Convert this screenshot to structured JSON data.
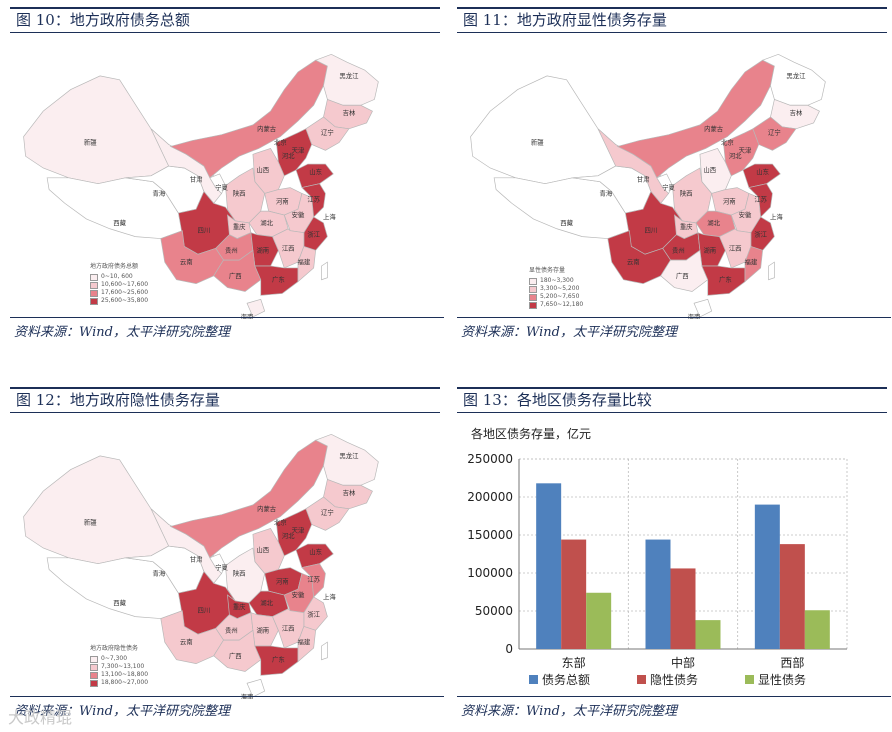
{
  "panels": {
    "p10": {
      "title": "图 10：地方政府债务总额",
      "source": "资料来源：Wind，太平洋研究院整理",
      "legend": {
        "title": "地方政府债务总额",
        "items": [
          {
            "label": "0~10, 600",
            "color": "#fbeef0"
          },
          {
            "label": "10,600~17,600",
            "color": "#f5c9ce"
          },
          {
            "label": "17,600~25,600",
            "color": "#e8838c"
          },
          {
            "label": "25,600~35,800",
            "color": "#c23a46"
          }
        ]
      }
    },
    "p11": {
      "title": "图 11：地方政府显性债务存量",
      "source": "资料来源：Wind，太平洋研究院整理",
      "legend": {
        "title": "显性债务存量",
        "items": [
          {
            "label": "180~3,300",
            "color": "#fbeef0"
          },
          {
            "label": "3,300~5,200",
            "color": "#f5c9ce"
          },
          {
            "label": "5,200~7,650",
            "color": "#e8838c"
          },
          {
            "label": "7,650~12,180",
            "color": "#c23a46"
          }
        ]
      }
    },
    "p12": {
      "title": "图 12：地方政府隐性债务存量",
      "source": "资料来源：Wind，太平洋研究院整理",
      "legend": {
        "title": "地方政府隐性债务",
        "items": [
          {
            "label": "0~7,300",
            "color": "#fbeef0"
          },
          {
            "label": "7,300~13,100",
            "color": "#f5c9ce"
          },
          {
            "label": "13,100~18,800",
            "color": "#e8838c"
          },
          {
            "label": "18,800~27,000",
            "color": "#c23a46"
          }
        ]
      }
    },
    "p13": {
      "title": "图 13：各地区债务存量比较",
      "source": "资料来源：Wind，太平洋研究院整理"
    }
  },
  "map_provinces": {
    "xinjiang": "新疆",
    "xizang": "西藏",
    "qinghai": "青海",
    "gansu": "甘肃",
    "ningxia": "宁夏",
    "neimenggu": "内蒙古",
    "heilongjiang": "黑龙江",
    "jilin": "吉林",
    "liaoning": "辽宁",
    "hebei": "河北",
    "shanxi": "山西",
    "shaanxi": "陕西",
    "shandong": "山东",
    "henan": "河南",
    "sichuan": "四川",
    "chongqing": "重庆",
    "hubei": "湖北",
    "anhui": "安徽",
    "jiangsu": "江苏",
    "zhejiang": "浙江",
    "guizhou": "贵州",
    "hunan": "湖南",
    "jiangxi": "江西",
    "yunnan": "云南",
    "guangxi": "广西",
    "guangdong": "广东",
    "fujian": "福建",
    "hainan": "海南",
    "beijing": "北京",
    "tianjin": "天津",
    "shanghai": "上海"
  },
  "map_colors": {
    "p10": {
      "xinjiang": "#fbeef0",
      "xizang": "#ffffff",
      "qinghai": "#ffffff",
      "gansu": "#fbeef0",
      "ningxia": "#ffffff",
      "neimenggu": "#e8838c",
      "heilongjiang": "#fbeef0",
      "jilin": "#f5c9ce",
      "liaoning": "#f5c9ce",
      "hebei": "#c23a46",
      "shanxi": "#f5c9ce",
      "shaanxi": "#f5c9ce",
      "shandong": "#c23a46",
      "henan": "#f5c9ce",
      "sichuan": "#c23a46",
      "chongqing": "#f5c9ce",
      "hubei": "#f5c9ce",
      "anhui": "#f5c9ce",
      "jiangsu": "#c23a46",
      "zhejiang": "#c23a46",
      "guizhou": "#e8838c",
      "hunan": "#c23a46",
      "jiangxi": "#f5c9ce",
      "yunnan": "#e8838c",
      "guangxi": "#e8838c",
      "guangdong": "#c23a46",
      "fujian": "#f5c9ce",
      "hainan": "#fbeef0"
    },
    "p11": {
      "xinjiang": "#ffffff",
      "xizang": "#ffffff",
      "qinghai": "#ffffff",
      "gansu": "#f5c9ce",
      "ningxia": "#ffffff",
      "neimenggu": "#e8838c",
      "heilongjiang": "#ffffff",
      "jilin": "#fbeef0",
      "liaoning": "#e8838c",
      "hebei": "#e8838c",
      "shanxi": "#fbeef0",
      "shaanxi": "#f5c9ce",
      "shandong": "#c23a46",
      "henan": "#f5c9ce",
      "sichuan": "#c23a46",
      "chongqing": "#f5c9ce",
      "hubei": "#e8838c",
      "anhui": "#f5c9ce",
      "jiangsu": "#c23a46",
      "zhejiang": "#c23a46",
      "guizhou": "#c23a46",
      "hunan": "#c23a46",
      "jiangxi": "#f5c9ce",
      "yunnan": "#c23a46",
      "guangxi": "#fbeef0",
      "guangdong": "#c23a46",
      "fujian": "#e8838c",
      "hainan": "#ffffff"
    },
    "p12": {
      "xinjiang": "#fbeef0",
      "xizang": "#ffffff",
      "qinghai": "#ffffff",
      "gansu": "#fbeef0",
      "ningxia": "#ffffff",
      "neimenggu": "#e8838c",
      "heilongjiang": "#fbeef0",
      "jilin": "#f5c9ce",
      "liaoning": "#f5c9ce",
      "hebei": "#c23a46",
      "shanxi": "#f5c9ce",
      "shaanxi": "#fbeef0",
      "shandong": "#c23a46",
      "henan": "#c23a46",
      "sichuan": "#c23a46",
      "chongqing": "#c23a46",
      "hubei": "#c23a46",
      "anhui": "#e8838c",
      "jiangsu": "#e8838c",
      "zhejiang": "#f5c9ce",
      "guizhou": "#f5c9ce",
      "hunan": "#f5c9ce",
      "jiangxi": "#f5c9ce",
      "yunnan": "#f5c9ce",
      "guangxi": "#f5c9ce",
      "guangdong": "#c23a46",
      "fujian": "#f5c9ce",
      "hainan": "#ffffff"
    }
  },
  "chart_data": {
    "type": "bar",
    "subtitle": "各地区债务存量，亿元",
    "categories": [
      "东部",
      "中部",
      "西部"
    ],
    "series": [
      {
        "name": "债务总额",
        "values": [
          218000,
          144000,
          190000
        ],
        "color": "#4f81bd"
      },
      {
        "name": "隐性债务",
        "values": [
          144000,
          106000,
          138000
        ],
        "color": "#c0504d"
      },
      {
        "name": "显性债务",
        "values": [
          74000,
          38000,
          51000
        ],
        "color": "#9bbb59"
      }
    ],
    "yticks": [
      0,
      50000,
      100000,
      150000,
      200000,
      250000
    ],
    "ylim": [
      0,
      250000
    ],
    "grid": true,
    "legend": "bottom"
  },
  "watermark": "大政精琨"
}
